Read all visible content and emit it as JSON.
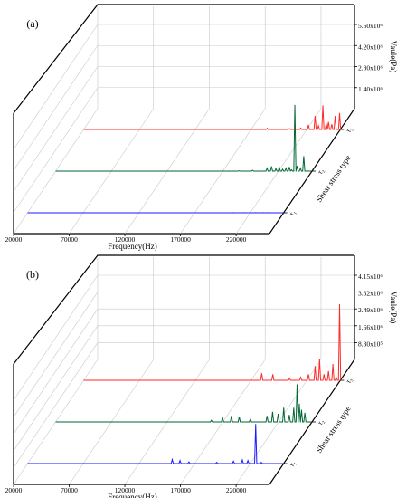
{
  "chart_data": [
    {
      "type": "line",
      "panel_label": "(a)",
      "xlabel": "Frequency(Hz)",
      "zlabel": "Vaule(Pa)",
      "ylabel": "Shear stress type",
      "x_ticks": [
        "20000",
        "70000",
        "120000",
        "170000",
        "220000"
      ],
      "x_range": [
        20000,
        250000
      ],
      "z_ticks": [
        "1.40x10⁶",
        "2.80x10⁶",
        "4.20x10⁶",
        "5.60x10⁶"
      ],
      "z_range": [
        0,
        5600000
      ],
      "grid": true,
      "series": [
        {
          "name": "τ₁",
          "color": "#1a1aff",
          "points": [
            [
              20000,
              0
            ],
            [
              160000,
              2000
            ],
            [
              185000,
              3000
            ],
            [
              205000,
              4000
            ],
            [
              215000,
              5000
            ],
            [
              225000,
              6000
            ],
            [
              232000,
              8000
            ],
            [
              236000,
              7000
            ],
            [
              240000,
              0
            ]
          ]
        },
        {
          "name": "τ₂",
          "color": "#006633",
          "points": [
            [
              20000,
              0
            ],
            [
              170000,
              5000
            ],
            [
              185000,
              20000
            ],
            [
              197000,
              60000
            ],
            [
              210000,
              200000
            ],
            [
              214000,
              320000
            ],
            [
              218000,
              180000
            ],
            [
              221000,
              260000
            ],
            [
              224000,
              130000
            ],
            [
              227000,
              200000
            ],
            [
              230000,
              280000
            ],
            [
              232000,
              90000
            ],
            [
              235000,
              4400000
            ],
            [
              237000,
              350000
            ],
            [
              240000,
              200000
            ],
            [
              243000,
              1000000
            ]
          ]
        },
        {
          "name": "τ₃",
          "color": "#ff2a2a",
          "points": [
            [
              20000,
              0
            ],
            [
              185000,
              80000
            ],
            [
              205000,
              60000
            ],
            [
              215000,
              100000
            ],
            [
              222000,
              300000
            ],
            [
              228000,
              900000
            ],
            [
              231000,
              250000
            ],
            [
              235000,
              1600000
            ],
            [
              238000,
              400000
            ],
            [
              240000,
              500000
            ],
            [
              243000,
              350000
            ],
            [
              246000,
              900000
            ],
            [
              250000,
              1100000
            ]
          ]
        }
      ]
    },
    {
      "type": "line",
      "panel_label": "(b)",
      "xlabel": "Frequency(Hz)",
      "zlabel": "Vaule(Pa)",
      "ylabel": "Shear stress type",
      "x_ticks": [
        "20000",
        "70000",
        "120000",
        "170000",
        "220000"
      ],
      "x_range": [
        20000,
        250000
      ],
      "z_ticks": [
        "8.30x10⁵",
        "1.66x10⁶",
        "2.49x10⁶",
        "3.32x10⁶",
        "4.15x10⁶"
      ],
      "z_range": [
        0,
        4150000
      ],
      "grid": true,
      "series": [
        {
          "name": "τ₁",
          "color": "#1a1aff",
          "points": [
            [
              20000,
              0
            ],
            [
              150000,
              200000
            ],
            [
              157000,
              150000
            ],
            [
              165000,
              80000
            ],
            [
              190000,
              60000
            ],
            [
              205000,
              120000
            ],
            [
              213000,
              180000
            ],
            [
              218000,
              150000
            ],
            [
              225000,
              1950000
            ],
            [
              230000,
              60000
            ],
            [
              240000,
              0
            ]
          ]
        },
        {
          "name": "τ₂",
          "color": "#006633",
          "points": [
            [
              20000,
              0
            ],
            [
              160000,
              80000
            ],
            [
              170000,
              220000
            ],
            [
              178000,
              300000
            ],
            [
              185000,
              250000
            ],
            [
              195000,
              150000
            ],
            [
              210000,
              300000
            ],
            [
              215000,
              500000
            ],
            [
              220000,
              400000
            ],
            [
              225000,
              700000
            ],
            [
              230000,
              350000
            ],
            [
              234000,
              700000
            ],
            [
              237000,
              1850000
            ],
            [
              239000,
              900000
            ],
            [
              241000,
              600000
            ],
            [
              244000,
              450000
            ]
          ]
        },
        {
          "name": "τ₃",
          "color": "#ff2a2a",
          "points": [
            [
              20000,
              0
            ],
            [
              180000,
              350000
            ],
            [
              190000,
              300000
            ],
            [
              205000,
              100000
            ],
            [
              215000,
              150000
            ],
            [
              222000,
              300000
            ],
            [
              228000,
              700000
            ],
            [
              232000,
              1050000
            ],
            [
              236000,
              300000
            ],
            [
              240000,
              450000
            ],
            [
              244000,
              800000
            ],
            [
              247000,
              150000
            ],
            [
              250000,
              3750000
            ]
          ]
        }
      ]
    }
  ]
}
